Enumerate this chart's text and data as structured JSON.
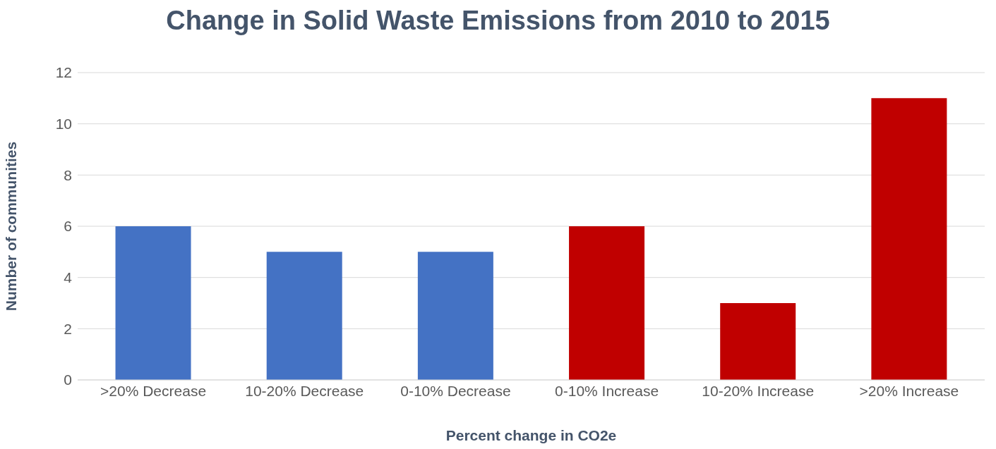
{
  "chart_data": {
    "type": "bar",
    "title": "Change in Solid Waste Emissions from 2010 to 2015",
    "xlabel": "Percent change in CO2e",
    "ylabel": "Number of communities",
    "categories": [
      ">20% Decrease",
      "10-20% Decrease",
      "0-10% Decrease",
      "0-10% Increase",
      "10-20% Increase",
      ">20% Increase"
    ],
    "values": [
      6,
      5,
      5,
      6,
      3,
      11
    ],
    "colors": [
      "#4472c4",
      "#4472c4",
      "#4472c4",
      "#c00000",
      "#c00000",
      "#c00000"
    ],
    "ylim": [
      0,
      12
    ],
    "yticks": [
      0,
      2,
      4,
      6,
      8,
      10,
      12
    ],
    "grid": "y",
    "legend": false
  }
}
